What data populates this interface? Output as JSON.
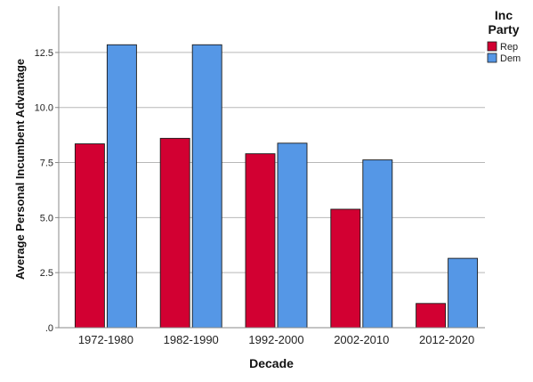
{
  "chart_data": {
    "type": "bar",
    "xlabel": "Decade",
    "ylabel": "Average Personal Incumbent Advantage",
    "categories": [
      "1972-1980",
      "1982-1990",
      "1992-2000",
      "2002-2010",
      "2012-2020"
    ],
    "series": [
      {
        "name": "Rep",
        "color": "#d20032",
        "values": [
          8.35,
          8.6,
          7.9,
          5.38,
          1.1
        ]
      },
      {
        "name": "Dem",
        "color": "#5597e6",
        "values": [
          12.85,
          12.85,
          8.38,
          7.62,
          3.15
        ]
      }
    ],
    "yticks": [
      ".0",
      "2.5",
      "5.0",
      "7.5",
      "10.0",
      "12.5"
    ],
    "ylim": [
      0,
      14.6
    ],
    "grid": true,
    "legend": {
      "title_line1": "Inc",
      "title_line2": "Party",
      "position": "top-right"
    }
  }
}
